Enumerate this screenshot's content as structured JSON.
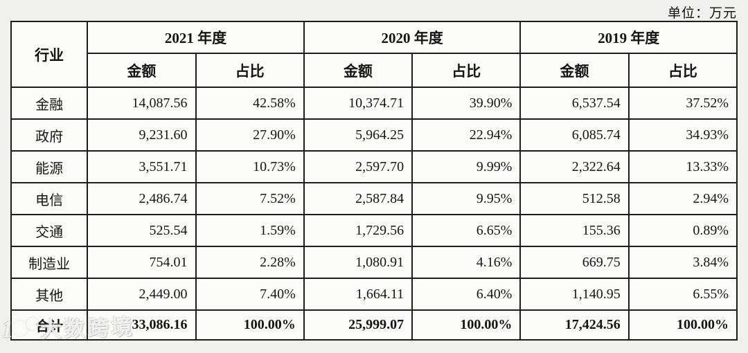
{
  "unit_label": "单位：万元",
  "watermark": {
    "text": "大数跨境",
    "logo": "10o-logo"
  },
  "table": {
    "industry_header": "行业",
    "year_groups": [
      {
        "year": "2021 年度",
        "amount_label": "金额",
        "ratio_label": "占比"
      },
      {
        "year": "2020 年度",
        "amount_label": "金额",
        "ratio_label": "占比"
      },
      {
        "year": "2019 年度",
        "amount_label": "金额",
        "ratio_label": "占比"
      }
    ],
    "rows": [
      {
        "industry": "金融",
        "values": [
          "14,087.56",
          "42.58%",
          "10,374.71",
          "39.90%",
          "6,537.54",
          "37.52%"
        ]
      },
      {
        "industry": "政府",
        "values": [
          "9,231.60",
          "27.90%",
          "5,964.25",
          "22.94%",
          "6,085.74",
          "34.93%"
        ]
      },
      {
        "industry": "能源",
        "values": [
          "3,551.71",
          "10.73%",
          "2,597.70",
          "9.99%",
          "2,322.64",
          "13.33%"
        ]
      },
      {
        "industry": "电信",
        "values": [
          "2,486.74",
          "7.52%",
          "2,587.84",
          "9.95%",
          "512.58",
          "2.94%"
        ]
      },
      {
        "industry": "交通",
        "values": [
          "525.54",
          "1.59%",
          "1,729.56",
          "6.65%",
          "155.36",
          "0.89%"
        ]
      },
      {
        "industry": "制造业",
        "values": [
          "754.01",
          "2.28%",
          "1,080.91",
          "4.16%",
          "669.75",
          "3.84%"
        ]
      },
      {
        "industry": "其他",
        "values": [
          "2,449.00",
          "7.40%",
          "1,664.11",
          "6.40%",
          "1,140.95",
          "6.55%"
        ]
      }
    ],
    "total": {
      "industry": "合计",
      "values": [
        "33,086.16",
        "100.00%",
        "25,999.07",
        "100.00%",
        "17,424.56",
        "100.00%"
      ]
    }
  }
}
